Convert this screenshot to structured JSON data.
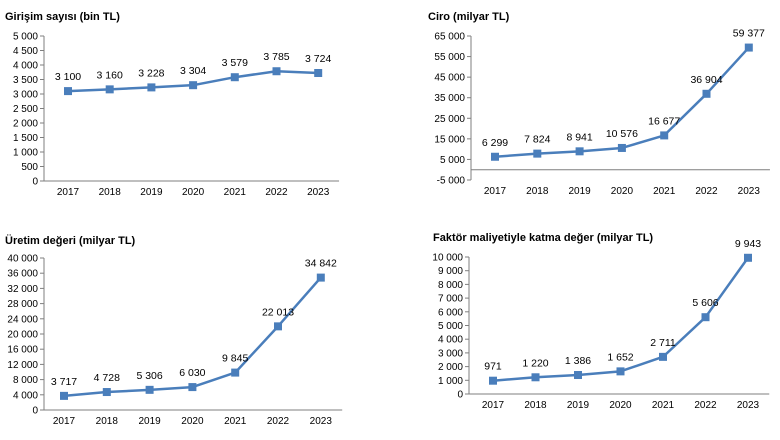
{
  "colors": {
    "line": "#4a7ebb",
    "marker": "#4a7ebb",
    "axis": "#7f7f7f",
    "text": "#000000"
  },
  "chart_data": [
    {
      "type": "line",
      "title": "Girişim sayısı (bin TL)",
      "categories": [
        "2017",
        "2018",
        "2019",
        "2020",
        "2021",
        "2022",
        "2023"
      ],
      "values": [
        3100,
        3160,
        3228,
        3304,
        3579,
        3785,
        3724
      ],
      "value_labels": [
        "3 100",
        "3 160",
        "3 228",
        "3 304",
        "3 579",
        "3 785",
        "3 724"
      ],
      "ylim": [
        0,
        5000
      ],
      "yticks": [
        0,
        500,
        1000,
        1500,
        2000,
        2500,
        3000,
        3500,
        4000,
        4500,
        5000
      ],
      "ytick_labels": [
        "0",
        "500",
        "1 000",
        "1 500",
        "2 000",
        "2 500",
        "3 000",
        "3 500",
        "4 000",
        "4 500",
        "5 000"
      ],
      "grid": false
    },
    {
      "type": "line",
      "title": "Ciro (milyar TL)",
      "categories": [
        "2017",
        "2018",
        "2019",
        "2020",
        "2021",
        "2022",
        "2023"
      ],
      "values": [
        6299,
        7824,
        8941,
        10576,
        16677,
        36904,
        59377
      ],
      "value_labels": [
        "6 299",
        "7 824",
        "8 941",
        "10 576",
        "16 677",
        "36 904",
        "59 377"
      ],
      "ylim": [
        -5000,
        65000
      ],
      "yticks": [
        -5000,
        5000,
        15000,
        25000,
        35000,
        45000,
        55000,
        65000
      ],
      "ytick_labels": [
        "-5 000",
        "5 000",
        "15 000",
        "25 000",
        "35 000",
        "45 000",
        "55 000",
        "65 000"
      ],
      "grid": false
    },
    {
      "type": "line",
      "title": "Üretim değeri (milyar TL)",
      "categories": [
        "2017",
        "2018",
        "2019",
        "2020",
        "2021",
        "2022",
        "2023"
      ],
      "values": [
        3717,
        4728,
        5306,
        6030,
        9845,
        22013,
        34842
      ],
      "value_labels": [
        "3 717",
        "4 728",
        "5 306",
        "6 030",
        "9 845",
        "22 013",
        "34 842"
      ],
      "ylim": [
        0,
        40000
      ],
      "yticks": [
        0,
        4000,
        8000,
        12000,
        16000,
        20000,
        24000,
        28000,
        32000,
        36000,
        40000
      ],
      "ytick_labels": [
        "0",
        "4 000",
        "8 000",
        "12 000",
        "16 000",
        "20 000",
        "24 000",
        "28 000",
        "32 000",
        "36 000",
        "40 000"
      ],
      "grid": false
    },
    {
      "type": "line",
      "title": "Faktör maliyetiyle katma değer (milyar TL)",
      "categories": [
        "2017",
        "2018",
        "2019",
        "2020",
        "2021",
        "2022",
        "2023"
      ],
      "values": [
        971,
        1220,
        1386,
        1652,
        2711,
        5606,
        9943
      ],
      "value_labels": [
        "971",
        "1 220",
        "1 386",
        "1 652",
        "2 711",
        "5 606",
        "9 943"
      ],
      "ylim": [
        0,
        10000
      ],
      "yticks": [
        0,
        1000,
        2000,
        3000,
        4000,
        5000,
        6000,
        7000,
        8000,
        9000,
        10000
      ],
      "ytick_labels": [
        "0",
        "1 000",
        "2 000",
        "3 000",
        "4 000",
        "5 000",
        "6 000",
        "7 000",
        "8 000",
        "9 000",
        "10 000"
      ],
      "grid": false
    }
  ]
}
